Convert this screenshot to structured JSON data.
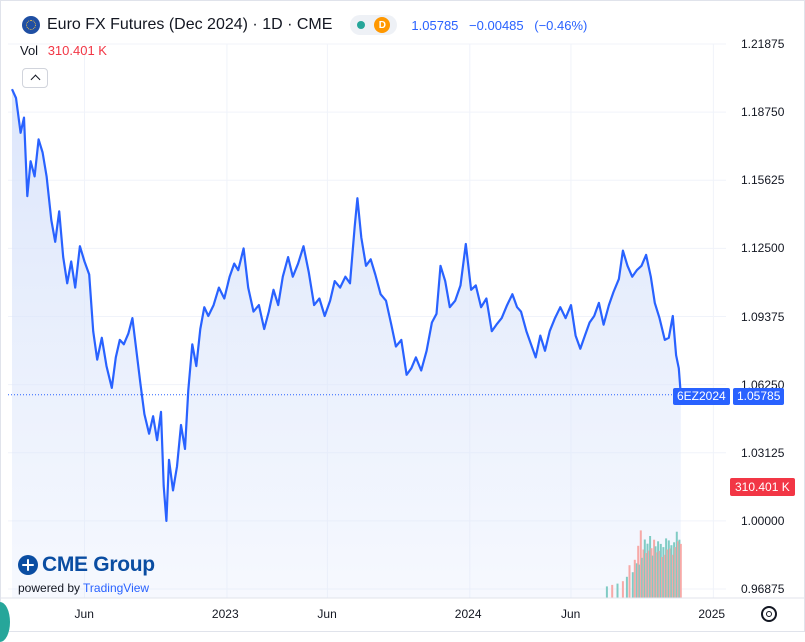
{
  "header": {
    "title": "Euro FX Futures (Dec 2024) · 1D · CME",
    "badge_d": "D",
    "last": "1.05785",
    "change": "−0.00485",
    "change_pct": "(−0.46%)",
    "icons": [
      "cme-globe-icon",
      "market-open-dot-icon",
      "delayed-data-icon"
    ]
  },
  "volume": {
    "label": "Vol",
    "value": "310.401 K",
    "tag": "310.401 K"
  },
  "price_tag": {
    "symbol": "6EZ2024",
    "value": "1.05785"
  },
  "brand": {
    "name": "CME Group",
    "powered": "powered by",
    "tv": "TradingView"
  },
  "colors": {
    "line": "#2962ff",
    "fill_top": "#dbe5fb",
    "volume_up": "#80cbc4",
    "volume_down": "#f7a9a7",
    "accent_red": "#f23645"
  },
  "chart_data": {
    "type": "area",
    "title": "Euro FX Futures (Dec 2024) · 1D · CME",
    "y_ticks": [
      "1.21875",
      "1.18750",
      "1.15625",
      "1.12500",
      "1.09375",
      "1.06250",
      "1.03125",
      "1.00000",
      "0.96875"
    ],
    "x_ticks": [
      "Jun",
      "2023",
      "Jun",
      "2024",
      "Jun",
      "2025"
    ],
    "ylim": [
      0.96875,
      1.21875
    ],
    "xlim": [
      "2022-02-06",
      "2025-01-20"
    ],
    "series": [
      {
        "values": [
          [
            "2022-02-12",
            1.198
          ],
          [
            "2022-02-18",
            1.194
          ],
          [
            "2022-02-25",
            1.178
          ],
          [
            "2022-03-02",
            1.185
          ],
          [
            "2022-03-07",
            1.149
          ],
          [
            "2022-03-12",
            1.165
          ],
          [
            "2022-03-18",
            1.158
          ],
          [
            "2022-03-24",
            1.175
          ],
          [
            "2022-03-30",
            1.169
          ],
          [
            "2022-04-05",
            1.158
          ],
          [
            "2022-04-12",
            1.138
          ],
          [
            "2022-04-18",
            1.128
          ],
          [
            "2022-04-24",
            1.142
          ],
          [
            "2022-04-30",
            1.121
          ],
          [
            "2022-05-06",
            1.109
          ],
          [
            "2022-05-12",
            1.119
          ],
          [
            "2022-05-18",
            1.107
          ],
          [
            "2022-05-25",
            1.126
          ],
          [
            "2022-06-01",
            1.119
          ],
          [
            "2022-06-08",
            1.113
          ],
          [
            "2022-06-14",
            1.087
          ],
          [
            "2022-06-20",
            1.074
          ],
          [
            "2022-06-27",
            1.084
          ],
          [
            "2022-07-04",
            1.071
          ],
          [
            "2022-07-12",
            1.061
          ],
          [
            "2022-07-18",
            1.075
          ],
          [
            "2022-07-24",
            1.083
          ],
          [
            "2022-07-30",
            1.081
          ],
          [
            "2022-08-06",
            1.086
          ],
          [
            "2022-08-12",
            1.093
          ],
          [
            "2022-08-18",
            1.078
          ],
          [
            "2022-08-24",
            1.063
          ],
          [
            "2022-08-30",
            1.049
          ],
          [
            "2022-09-06",
            1.04
          ],
          [
            "2022-09-12",
            1.048
          ],
          [
            "2022-09-18",
            1.037
          ],
          [
            "2022-09-24",
            1.05
          ],
          [
            "2022-09-28",
            1.016
          ],
          [
            "2022-10-02",
            1.0
          ],
          [
            "2022-10-06",
            1.028
          ],
          [
            "2022-10-12",
            1.014
          ],
          [
            "2022-10-18",
            1.025
          ],
          [
            "2022-10-24",
            1.044
          ],
          [
            "2022-10-30",
            1.033
          ],
          [
            "2022-11-04",
            1.06
          ],
          [
            "2022-11-10",
            1.081
          ],
          [
            "2022-11-16",
            1.071
          ],
          [
            "2022-11-22",
            1.088
          ],
          [
            "2022-11-28",
            1.098
          ],
          [
            "2022-12-04",
            1.094
          ],
          [
            "2022-12-12",
            1.099
          ],
          [
            "2022-12-20",
            1.107
          ],
          [
            "2022-12-28",
            1.102
          ],
          [
            "2023-01-05",
            1.112
          ],
          [
            "2023-01-12",
            1.118
          ],
          [
            "2023-01-18",
            1.115
          ],
          [
            "2023-01-26",
            1.125
          ],
          [
            "2023-02-02",
            1.107
          ],
          [
            "2023-02-10",
            1.096
          ],
          [
            "2023-02-18",
            1.099
          ],
          [
            "2023-02-26",
            1.088
          ],
          [
            "2023-03-05",
            1.096
          ],
          [
            "2023-03-12",
            1.106
          ],
          [
            "2023-03-19",
            1.099
          ],
          [
            "2023-03-26",
            1.112
          ],
          [
            "2023-04-03",
            1.121
          ],
          [
            "2023-04-10",
            1.112
          ],
          [
            "2023-04-18",
            1.118
          ],
          [
            "2023-04-26",
            1.126
          ],
          [
            "2023-05-04",
            1.114
          ],
          [
            "2023-05-12",
            1.099
          ],
          [
            "2023-05-20",
            1.102
          ],
          [
            "2023-05-28",
            1.094
          ],
          [
            "2023-06-05",
            1.101
          ],
          [
            "2023-06-12",
            1.11
          ],
          [
            "2023-06-20",
            1.107
          ],
          [
            "2023-06-28",
            1.112
          ],
          [
            "2023-07-05",
            1.109
          ],
          [
            "2023-07-12",
            1.135
          ],
          [
            "2023-07-16",
            1.148
          ],
          [
            "2023-07-22",
            1.13
          ],
          [
            "2023-07-29",
            1.117
          ],
          [
            "2023-08-05",
            1.12
          ],
          [
            "2023-08-12",
            1.113
          ],
          [
            "2023-08-20",
            1.104
          ],
          [
            "2023-08-28",
            1.101
          ],
          [
            "2023-09-05",
            1.09
          ],
          [
            "2023-09-12",
            1.08
          ],
          [
            "2023-09-20",
            1.083
          ],
          [
            "2023-09-28",
            1.067
          ],
          [
            "2023-10-05",
            1.07
          ],
          [
            "2023-10-12",
            1.075
          ],
          [
            "2023-10-20",
            1.069
          ],
          [
            "2023-10-28",
            1.078
          ],
          [
            "2023-11-05",
            1.091
          ],
          [
            "2023-11-12",
            1.095
          ],
          [
            "2023-11-18",
            1.117
          ],
          [
            "2023-11-25",
            1.11
          ],
          [
            "2023-12-02",
            1.098
          ],
          [
            "2023-12-10",
            1.101
          ],
          [
            "2023-12-18",
            1.108
          ],
          [
            "2023-12-26",
            1.127
          ],
          [
            "2024-01-03",
            1.106
          ],
          [
            "2024-01-10",
            1.108
          ],
          [
            "2024-01-18",
            1.098
          ],
          [
            "2024-01-26",
            1.102
          ],
          [
            "2024-02-03",
            1.087
          ],
          [
            "2024-02-10",
            1.09
          ],
          [
            "2024-02-18",
            1.093
          ],
          [
            "2024-02-26",
            1.099
          ],
          [
            "2024-03-05",
            1.104
          ],
          [
            "2024-03-12",
            1.098
          ],
          [
            "2024-03-18",
            1.096
          ],
          [
            "2024-03-26",
            1.087
          ],
          [
            "2024-04-02",
            1.081
          ],
          [
            "2024-04-09",
            1.075
          ],
          [
            "2024-04-16",
            1.085
          ],
          [
            "2024-04-23",
            1.078
          ],
          [
            "2024-04-30",
            1.087
          ],
          [
            "2024-05-08",
            1.093
          ],
          [
            "2024-05-16",
            1.098
          ],
          [
            "2024-05-24",
            1.093
          ],
          [
            "2024-06-01",
            1.099
          ],
          [
            "2024-06-08",
            1.085
          ],
          [
            "2024-06-15",
            1.079
          ],
          [
            "2024-06-22",
            1.085
          ],
          [
            "2024-06-29",
            1.091
          ],
          [
            "2024-07-06",
            1.094
          ],
          [
            "2024-07-13",
            1.1
          ],
          [
            "2024-07-20",
            1.09
          ],
          [
            "2024-07-28",
            1.099
          ],
          [
            "2024-08-04",
            1.105
          ],
          [
            "2024-08-12",
            1.111
          ],
          [
            "2024-08-18",
            1.124
          ],
          [
            "2024-08-25",
            1.117
          ],
          [
            "2024-09-01",
            1.112
          ],
          [
            "2024-09-08",
            1.115
          ],
          [
            "2024-09-15",
            1.117
          ],
          [
            "2024-09-22",
            1.122
          ],
          [
            "2024-09-29",
            1.112
          ],
          [
            "2024-10-05",
            1.1
          ],
          [
            "2024-10-12",
            1.093
          ],
          [
            "2024-10-20",
            1.083
          ],
          [
            "2024-10-26",
            1.084
          ],
          [
            "2024-11-01",
            1.094
          ],
          [
            "2024-11-06",
            1.076
          ],
          [
            "2024-11-10",
            1.07
          ],
          [
            "2024-11-13",
            1.05785
          ]
        ]
      }
    ],
    "volume": {
      "values": [
        [
          "2024-07-25",
          0.0012
        ],
        [
          "2024-08-02",
          0.0019
        ],
        [
          "2024-08-10",
          0.0025
        ],
        [
          "2024-08-18",
          0.0036
        ],
        [
          "2024-08-24",
          0.0056
        ],
        [
          "2024-08-28",
          0.0109
        ],
        [
          "2024-09-02",
          0.0077
        ],
        [
          "2024-09-05",
          0.0134
        ],
        [
          "2024-09-08",
          0.0118
        ],
        [
          "2024-09-10",
          0.0198
        ],
        [
          "2024-09-12",
          0.0112
        ],
        [
          "2024-09-14",
          0.0269
        ],
        [
          "2024-09-16",
          0.0143
        ],
        [
          "2024-09-18",
          0.0181
        ],
        [
          "2024-09-20",
          0.0227
        ],
        [
          "2024-09-22",
          0.0165
        ],
        [
          "2024-09-24",
          0.0208
        ],
        [
          "2024-09-26",
          0.0176
        ],
        [
          "2024-09-28",
          0.0243
        ],
        [
          "2024-09-30",
          0.0187
        ],
        [
          "2024-10-02",
          0.0153
        ],
        [
          "2024-10-04",
          0.0226
        ],
        [
          "2024-10-06",
          0.0196
        ],
        [
          "2024-10-08",
          0.0168
        ],
        [
          "2024-10-10",
          0.0219
        ],
        [
          "2024-10-12",
          0.0175
        ],
        [
          "2024-10-14",
          0.0207
        ],
        [
          "2024-10-16",
          0.0147
        ],
        [
          "2024-10-18",
          0.0192
        ],
        [
          "2024-10-20",
          0.0157
        ],
        [
          "2024-10-22",
          0.0232
        ],
        [
          "2024-10-24",
          0.0181
        ],
        [
          "2024-10-26",
          0.0223
        ],
        [
          "2024-10-28",
          0.0186
        ],
        [
          "2024-10-30",
          0.0201
        ],
        [
          "2024-11-01",
          0.0157
        ],
        [
          "2024-11-03",
          0.0214
        ],
        [
          "2024-11-05",
          0.0192
        ],
        [
          "2024-11-07",
          0.0263
        ],
        [
          "2024-11-09",
          0.0219
        ],
        [
          "2024-11-11",
          0.0226
        ],
        [
          "2024-11-13",
          0.0207
        ]
      ],
      "up_flags": [
        1,
        0,
        1,
        0,
        1,
        0,
        1,
        0,
        1,
        0,
        1,
        0,
        1,
        0,
        1,
        0,
        1,
        0,
        1,
        0,
        1,
        0,
        1,
        0,
        1,
        0,
        1,
        0,
        1,
        0,
        1,
        0,
        1,
        0,
        1,
        0,
        1,
        0,
        1,
        0,
        1,
        0
      ]
    }
  }
}
